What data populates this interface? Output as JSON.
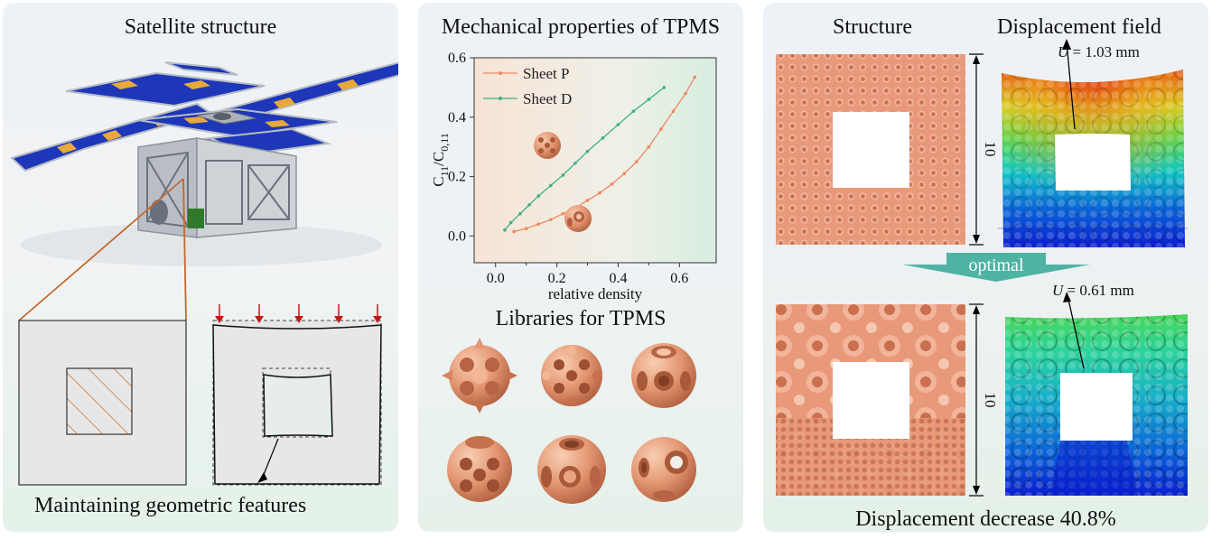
{
  "left_panel": {
    "title": "Satellite structure",
    "caption": "Maintaining geometric features"
  },
  "middle_panel": {
    "title": "Mechanical properties of TPMS",
    "library_title": "Libraries for TPMS"
  },
  "right_panel": {
    "structure_label": "Structure",
    "displacement_label": "Displacement field",
    "arrow_label": "optimal",
    "dimension_top": "10",
    "dimension_bottom": "10",
    "u_top_var": "U",
    "u_top_value": " = 1.03 mm",
    "u_bottom_var": "U",
    "u_bottom_value": " = 0.61 mm",
    "caption": "Displacement decrease 40.8%"
  },
  "colors": {
    "copper": "#e79a7a",
    "sheet_p": "#f08860",
    "sheet_d": "#3fb083",
    "load_arrow": "#c01a1a"
  },
  "chart_data": {
    "type": "line",
    "xlabel": "relative density",
    "ylabel_main": "C",
    "ylabel_sub1": "11",
    "ylabel_mid": "/C",
    "ylabel_sub2": "0,11",
    "xlim": [
      -0.07,
      0.72
    ],
    "ylim": [
      -0.09,
      0.6
    ],
    "xticks": [
      "0.0",
      "0.2",
      "0.4",
      "0.6"
    ],
    "yticks": [
      "0.0",
      "0.2",
      "0.4",
      "0.6"
    ],
    "legend_position": "top-left",
    "series": [
      {
        "name": "Sheet P",
        "color": "#f08860",
        "x": [
          0.06,
          0.1,
          0.14,
          0.18,
          0.22,
          0.26,
          0.3,
          0.34,
          0.38,
          0.42,
          0.46,
          0.5,
          0.54,
          0.58,
          0.62,
          0.65
        ],
        "y": [
          0.015,
          0.025,
          0.04,
          0.055,
          0.075,
          0.095,
          0.12,
          0.145,
          0.175,
          0.21,
          0.25,
          0.3,
          0.36,
          0.42,
          0.48,
          0.535
        ]
      },
      {
        "name": "Sheet D",
        "color": "#3fb083",
        "x": [
          0.03,
          0.05,
          0.08,
          0.11,
          0.14,
          0.18,
          0.22,
          0.26,
          0.3,
          0.35,
          0.4,
          0.45,
          0.5,
          0.55
        ],
        "y": [
          0.02,
          0.045,
          0.075,
          0.105,
          0.135,
          0.17,
          0.205,
          0.245,
          0.285,
          0.33,
          0.375,
          0.42,
          0.46,
          0.5
        ]
      }
    ]
  }
}
